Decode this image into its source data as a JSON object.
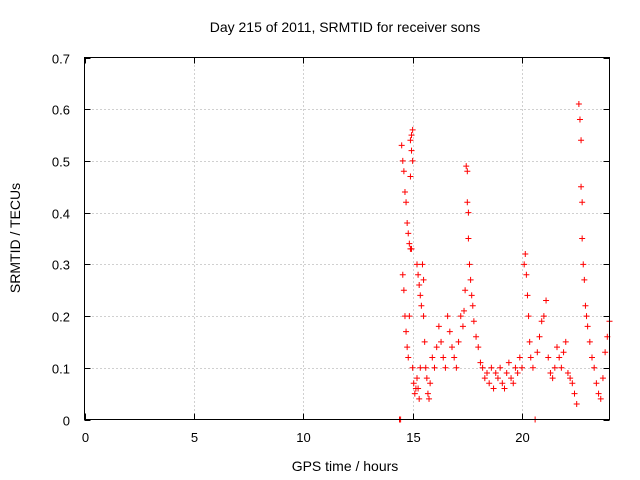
{
  "chart_data": {
    "type": "scatter",
    "title": "Day 215 of 2011, SRMTID for receiver sons",
    "xlabel": "GPS time / hours",
    "ylabel": "SRMTID / TECUs",
    "xlim": [
      0,
      24
    ],
    "ylim": [
      0,
      0.7
    ],
    "xticks": [
      0,
      5,
      10,
      15,
      20
    ],
    "xtick_labels": [
      "0",
      "5",
      "10",
      "15",
      "20"
    ],
    "yticks": [
      0,
      0.1,
      0.2,
      0.3,
      0.4,
      0.5,
      0.6,
      0.7
    ],
    "ytick_labels": [
      "0",
      "0.1",
      "0.2",
      "0.3",
      "0.4",
      "0.5",
      "0.6",
      "0.7"
    ],
    "grid": true,
    "marker": "+",
    "series": [
      {
        "name": "SRMTID",
        "color": "#ff0000",
        "points": [
          [
            14.4,
            0.0
          ],
          [
            14.45,
            0.0
          ],
          [
            14.5,
            0.53
          ],
          [
            14.55,
            0.5
          ],
          [
            14.6,
            0.48
          ],
          [
            14.65,
            0.44
          ],
          [
            14.7,
            0.42
          ],
          [
            14.75,
            0.38
          ],
          [
            14.8,
            0.36
          ],
          [
            14.85,
            0.34
          ],
          [
            14.9,
            0.33
          ],
          [
            14.95,
            0.33
          ],
          [
            14.55,
            0.28
          ],
          [
            14.6,
            0.25
          ],
          [
            14.65,
            0.2
          ],
          [
            14.7,
            0.17
          ],
          [
            14.75,
            0.14
          ],
          [
            14.8,
            0.12
          ],
          [
            14.85,
            0.2
          ],
          [
            14.9,
            0.54
          ],
          [
            14.95,
            0.55
          ],
          [
            15.0,
            0.56
          ],
          [
            14.95,
            0.52
          ],
          [
            15.0,
            0.5
          ],
          [
            14.9,
            0.47
          ],
          [
            15.0,
            0.1
          ],
          [
            15.05,
            0.07
          ],
          [
            15.1,
            0.05
          ],
          [
            15.15,
            0.06
          ],
          [
            15.2,
            0.08
          ],
          [
            15.25,
            0.06
          ],
          [
            15.3,
            0.04
          ],
          [
            15.35,
            0.1
          ],
          [
            15.2,
            0.3
          ],
          [
            15.25,
            0.28
          ],
          [
            15.3,
            0.26
          ],
          [
            15.35,
            0.24
          ],
          [
            15.4,
            0.22
          ],
          [
            15.45,
            0.3
          ],
          [
            15.5,
            0.27
          ],
          [
            15.5,
            0.2
          ],
          [
            15.55,
            0.15
          ],
          [
            15.6,
            0.1
          ],
          [
            15.65,
            0.08
          ],
          [
            15.7,
            0.05
          ],
          [
            15.75,
            0.04
          ],
          [
            15.8,
            0.07
          ],
          [
            15.9,
            0.12
          ],
          [
            16.0,
            0.1
          ],
          [
            16.1,
            0.14
          ],
          [
            16.2,
            0.18
          ],
          [
            16.3,
            0.15
          ],
          [
            16.4,
            0.12
          ],
          [
            16.5,
            0.1
          ],
          [
            16.6,
            0.2
          ],
          [
            16.7,
            0.17
          ],
          [
            16.8,
            0.14
          ],
          [
            16.9,
            0.12
          ],
          [
            17.0,
            0.1
          ],
          [
            17.1,
            0.15
          ],
          [
            17.2,
            0.2
          ],
          [
            17.3,
            0.18
          ],
          [
            17.35,
            0.21
          ],
          [
            17.4,
            0.25
          ],
          [
            17.45,
            0.49
          ],
          [
            17.5,
            0.48
          ],
          [
            17.5,
            0.42
          ],
          [
            17.55,
            0.4
          ],
          [
            17.55,
            0.35
          ],
          [
            17.6,
            0.3
          ],
          [
            17.65,
            0.27
          ],
          [
            17.7,
            0.24
          ],
          [
            17.75,
            0.22
          ],
          [
            17.8,
            0.19
          ],
          [
            17.9,
            0.16
          ],
          [
            18.0,
            0.14
          ],
          [
            18.1,
            0.11
          ],
          [
            18.2,
            0.1
          ],
          [
            18.3,
            0.08
          ],
          [
            18.4,
            0.09
          ],
          [
            18.5,
            0.07
          ],
          [
            18.6,
            0.1
          ],
          [
            18.7,
            0.06
          ],
          [
            18.8,
            0.09
          ],
          [
            18.9,
            0.08
          ],
          [
            19.0,
            0.1
          ],
          [
            19.1,
            0.07
          ],
          [
            19.2,
            0.06
          ],
          [
            19.3,
            0.09
          ],
          [
            19.4,
            0.11
          ],
          [
            19.5,
            0.08
          ],
          [
            19.6,
            0.07
          ],
          [
            19.7,
            0.1
          ],
          [
            19.8,
            0.09
          ],
          [
            19.9,
            0.12
          ],
          [
            20.0,
            0.1
          ],
          [
            20.1,
            0.3
          ],
          [
            20.15,
            0.32
          ],
          [
            20.2,
            0.28
          ],
          [
            20.25,
            0.24
          ],
          [
            20.3,
            0.2
          ],
          [
            20.35,
            0.15
          ],
          [
            20.4,
            0.12
          ],
          [
            20.5,
            0.1
          ],
          [
            20.6,
            0.0
          ],
          [
            20.7,
            0.13
          ],
          [
            20.8,
            0.16
          ],
          [
            20.9,
            0.19
          ],
          [
            21.0,
            0.2
          ],
          [
            21.1,
            0.23
          ],
          [
            21.2,
            0.12
          ],
          [
            21.3,
            0.09
          ],
          [
            21.4,
            0.08
          ],
          [
            21.5,
            0.1
          ],
          [
            21.6,
            0.14
          ],
          [
            21.7,
            0.12
          ],
          [
            21.8,
            0.1
          ],
          [
            21.9,
            0.13
          ],
          [
            22.0,
            0.15
          ],
          [
            22.1,
            0.09
          ],
          [
            22.2,
            0.08
          ],
          [
            22.3,
            0.07
          ],
          [
            22.4,
            0.05
          ],
          [
            22.5,
            0.03
          ],
          [
            22.6,
            0.61
          ],
          [
            22.65,
            0.58
          ],
          [
            22.7,
            0.54
          ],
          [
            22.7,
            0.45
          ],
          [
            22.75,
            0.42
          ],
          [
            22.75,
            0.35
          ],
          [
            22.8,
            0.3
          ],
          [
            22.85,
            0.27
          ],
          [
            22.9,
            0.22
          ],
          [
            22.95,
            0.2
          ],
          [
            23.0,
            0.18
          ],
          [
            23.1,
            0.15
          ],
          [
            23.2,
            0.12
          ],
          [
            23.3,
            0.1
          ],
          [
            23.4,
            0.07
          ],
          [
            23.5,
            0.05
          ],
          [
            23.6,
            0.04
          ],
          [
            23.7,
            0.08
          ],
          [
            23.8,
            0.13
          ],
          [
            23.9,
            0.16
          ],
          [
            24.0,
            0.19
          ]
        ]
      }
    ]
  }
}
